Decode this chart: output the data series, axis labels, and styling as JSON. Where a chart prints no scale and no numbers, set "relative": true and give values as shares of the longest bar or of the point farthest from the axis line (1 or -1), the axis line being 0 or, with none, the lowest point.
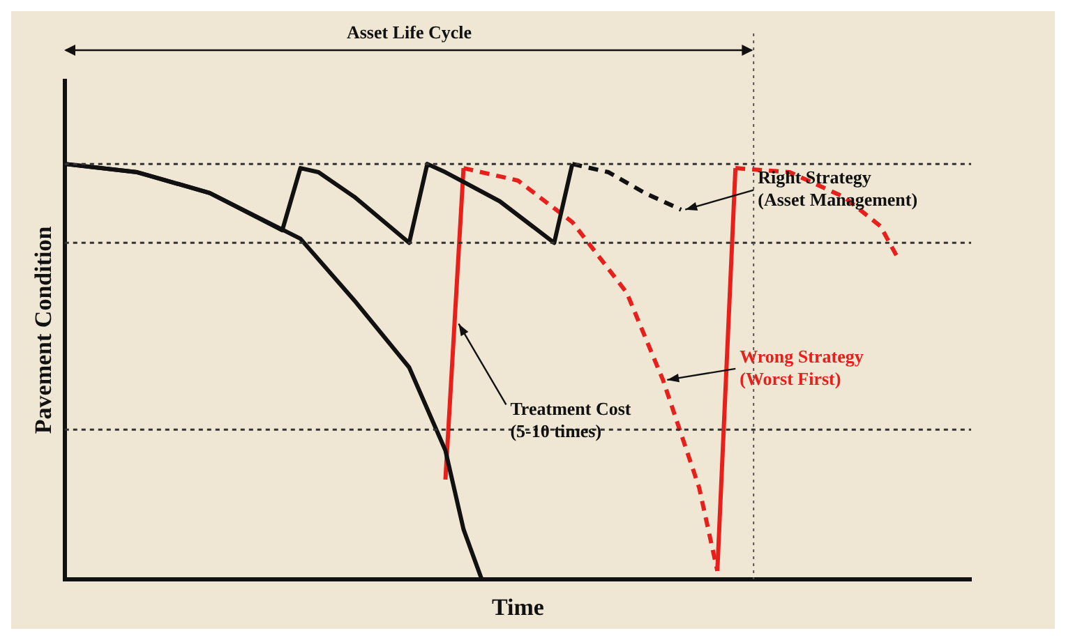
{
  "chart_data": {
    "type": "line",
    "relative": true,
    "xlabel": "Time",
    "ylabel": "Pavement Condition",
    "grid": false,
    "legend": false,
    "marker": "none",
    "line_style": "solid",
    "categories": [
      null,
      null,
      null,
      null,
      null,
      null,
      null,
      null,
      null,
      null,
      null,
      null,
      null,
      null,
      null,
      null,
      null,
      null,
      null,
      null,
      null,
      null,
      null,
      null,
      null,
      null,
      null,
      null,
      null,
      null,
      null,
      null,
      null,
      null,
      null,
      null,
      null,
      null,
      null,
      null,
      null,
      null,
      null,
      null,
      null,
      null,
      null,
      null,
      null,
      null,
      null
    ],
    "series": [
      {
        "color": "#111111",
        "values": [
          1,
          null,
          null,
          null,
          0.98,
          null,
          null,
          null,
          0.93,
          null,
          null,
          null,
          null,
          0.82,
          null,
          null,
          0.67,
          null,
          null,
          0.51,
          null,
          0.31,
          0.12,
          0,
          null,
          null,
          null,
          null,
          null,
          null,
          null,
          null,
          null,
          null,
          null,
          null,
          null,
          null,
          null,
          null,
          null,
          null,
          null,
          null,
          null,
          null,
          null,
          null,
          null,
          null,
          null
        ]
      },
      {
        "color": "#111111",
        "values": [
          1,
          null,
          null,
          null,
          0.98,
          null,
          null,
          null,
          0.93,
          null,
          null,
          null,
          0.84,
          0.99,
          0.98,
          null,
          0.92,
          null,
          null,
          0.81,
          1,
          0.98,
          null,
          null,
          0.91,
          null,
          null,
          0.81,
          1,
          null,
          null,
          null,
          null,
          null,
          null,
          null,
          null,
          null,
          null,
          null,
          null,
          null,
          null,
          null,
          null,
          null,
          null,
          null,
          null,
          null,
          null
        ]
      },
      {
        "color": "#111111",
        "line_style": "dashed",
        "values": [
          null,
          null,
          null,
          null,
          null,
          null,
          null,
          null,
          null,
          null,
          null,
          null,
          null,
          null,
          null,
          null,
          null,
          null,
          null,
          null,
          null,
          null,
          null,
          null,
          null,
          null,
          null,
          null,
          1,
          null,
          0.98,
          null,
          0.93,
          null,
          0.89,
          null,
          null,
          null,
          null,
          null,
          null,
          null,
          null,
          null,
          null,
          null,
          null,
          null,
          null,
          null,
          null
        ]
      },
      {
        "color": "#e8201c",
        "values": [
          null,
          null,
          null,
          null,
          null,
          null,
          null,
          null,
          null,
          null,
          null,
          null,
          null,
          null,
          null,
          null,
          null,
          null,
          null,
          null,
          null,
          0.24,
          0.99,
          null,
          null,
          null,
          null,
          null,
          null,
          null,
          null,
          null,
          null,
          null,
          null,
          null,
          null,
          null,
          null,
          null,
          null,
          null,
          null,
          null,
          null,
          null,
          null,
          null,
          null,
          null,
          null
        ]
      },
      {
        "color": "#e8201c",
        "line_style": "dashed",
        "values": [
          null,
          null,
          null,
          null,
          null,
          null,
          null,
          null,
          null,
          null,
          null,
          null,
          null,
          null,
          null,
          null,
          null,
          null,
          null,
          null,
          null,
          null,
          0.99,
          null,
          null,
          0.96,
          null,
          null,
          0.86,
          null,
          null,
          0.69,
          null,
          0.48,
          null,
          0.22,
          0.02,
          null,
          null,
          null,
          null,
          null,
          null,
          null,
          null,
          null,
          null,
          null,
          null,
          null,
          null
        ]
      },
      {
        "color": "#e8201c",
        "values": [
          null,
          null,
          null,
          null,
          null,
          null,
          null,
          null,
          null,
          null,
          null,
          null,
          null,
          null,
          null,
          null,
          null,
          null,
          null,
          null,
          null,
          null,
          null,
          null,
          null,
          null,
          null,
          null,
          null,
          null,
          null,
          null,
          null,
          null,
          null,
          null,
          0.02,
          0.99,
          null,
          null,
          null,
          null,
          null,
          null,
          null,
          null,
          null,
          null,
          null,
          null,
          null
        ]
      },
      {
        "color": "#e8201c",
        "line_style": "dashed",
        "values": [
          null,
          null,
          null,
          null,
          null,
          null,
          null,
          null,
          null,
          null,
          null,
          null,
          null,
          null,
          null,
          null,
          null,
          null,
          null,
          null,
          null,
          null,
          null,
          null,
          null,
          null,
          null,
          null,
          null,
          null,
          null,
          null,
          null,
          null,
          null,
          null,
          null,
          0.99,
          null,
          null,
          0.98,
          null,
          null,
          0.92,
          null,
          0.85,
          0.77,
          null,
          null,
          null,
          null
        ]
      }
    ],
    "ref_lines": [
      {
        "axis": "y",
        "value": 1,
        "line_style": "dotted"
      },
      {
        "axis": "y",
        "value": 0.81,
        "line_style": "dotted"
      },
      {
        "axis": "y",
        "value": 0.36,
        "line_style": "dotted"
      }
    ],
    "annotations": [
      "Asset Life Cycle",
      "Right Strategy (Asset Management)",
      "Wrong Strategy (Worst First)",
      "Treatment Cost (5-10 times)"
    ]
  }
}
